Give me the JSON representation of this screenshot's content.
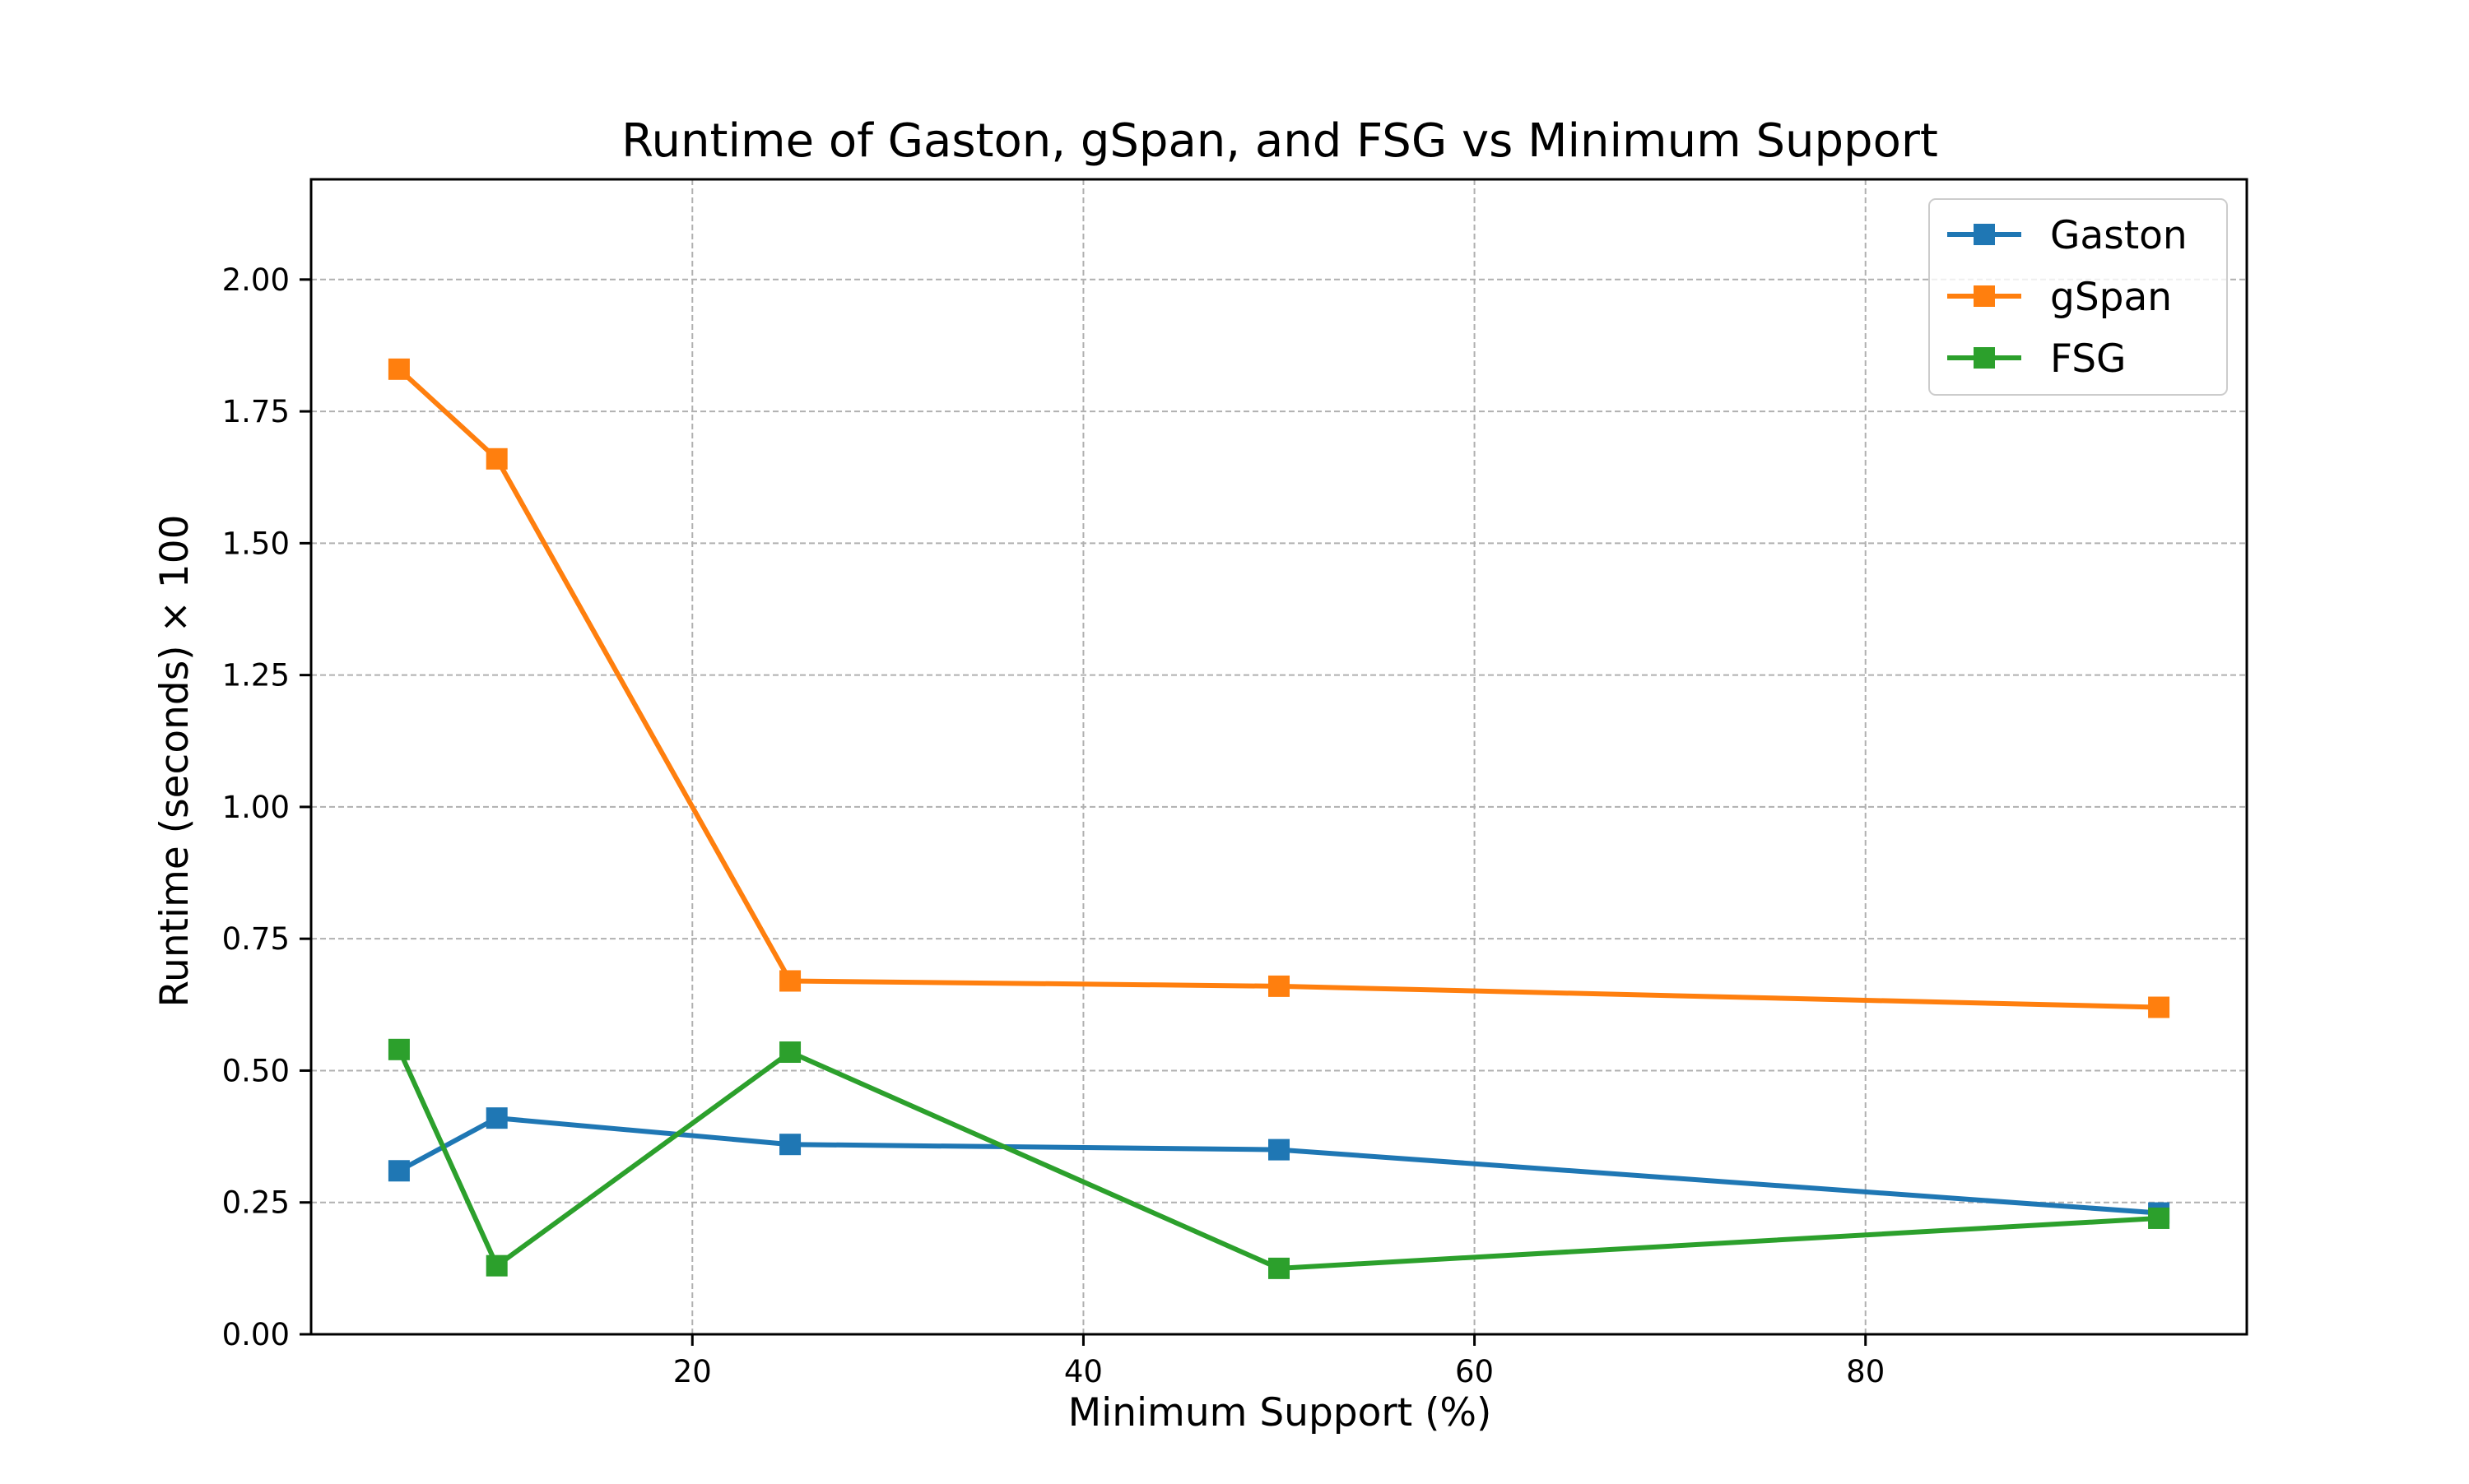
{
  "chart_data": {
    "type": "line",
    "title": "Runtime of Gaston, gSpan, and FSG vs Minimum Support",
    "xlabel": "Minimum Support (%)",
    "ylabel": "Runtime (seconds) × 100",
    "x": [
      5,
      10,
      25,
      50,
      95
    ],
    "xlim": [
      0.5,
      99.5
    ],
    "ylim": [
      0,
      2.19
    ],
    "xticks": [
      20,
      40,
      60,
      80
    ],
    "xtick_labels": [
      "20",
      "40",
      "60",
      "80"
    ],
    "yticks": [
      0,
      0.25,
      0.5,
      0.75,
      1.0,
      1.25,
      1.5,
      1.75,
      2.0
    ],
    "ytick_labels": [
      "0.00",
      "0.25",
      "0.50",
      "0.75",
      "1.00",
      "1.25",
      "1.50",
      "1.75",
      "2.00"
    ],
    "grid": true,
    "marker": "square",
    "legend_position": "top-right",
    "series": [
      {
        "name": "Gaston",
        "color": "#1f77b4",
        "values": [
          0.31,
          0.41,
          0.36,
          0.35,
          0.23
        ]
      },
      {
        "name": "gSpan",
        "color": "#ff7f0e",
        "values": [
          1.83,
          1.66,
          0.67,
          0.66,
          0.62
        ]
      },
      {
        "name": "FSG",
        "color": "#2ca02c",
        "values": [
          0.54,
          0.13,
          0.535,
          0.125,
          0.22
        ]
      }
    ]
  }
}
